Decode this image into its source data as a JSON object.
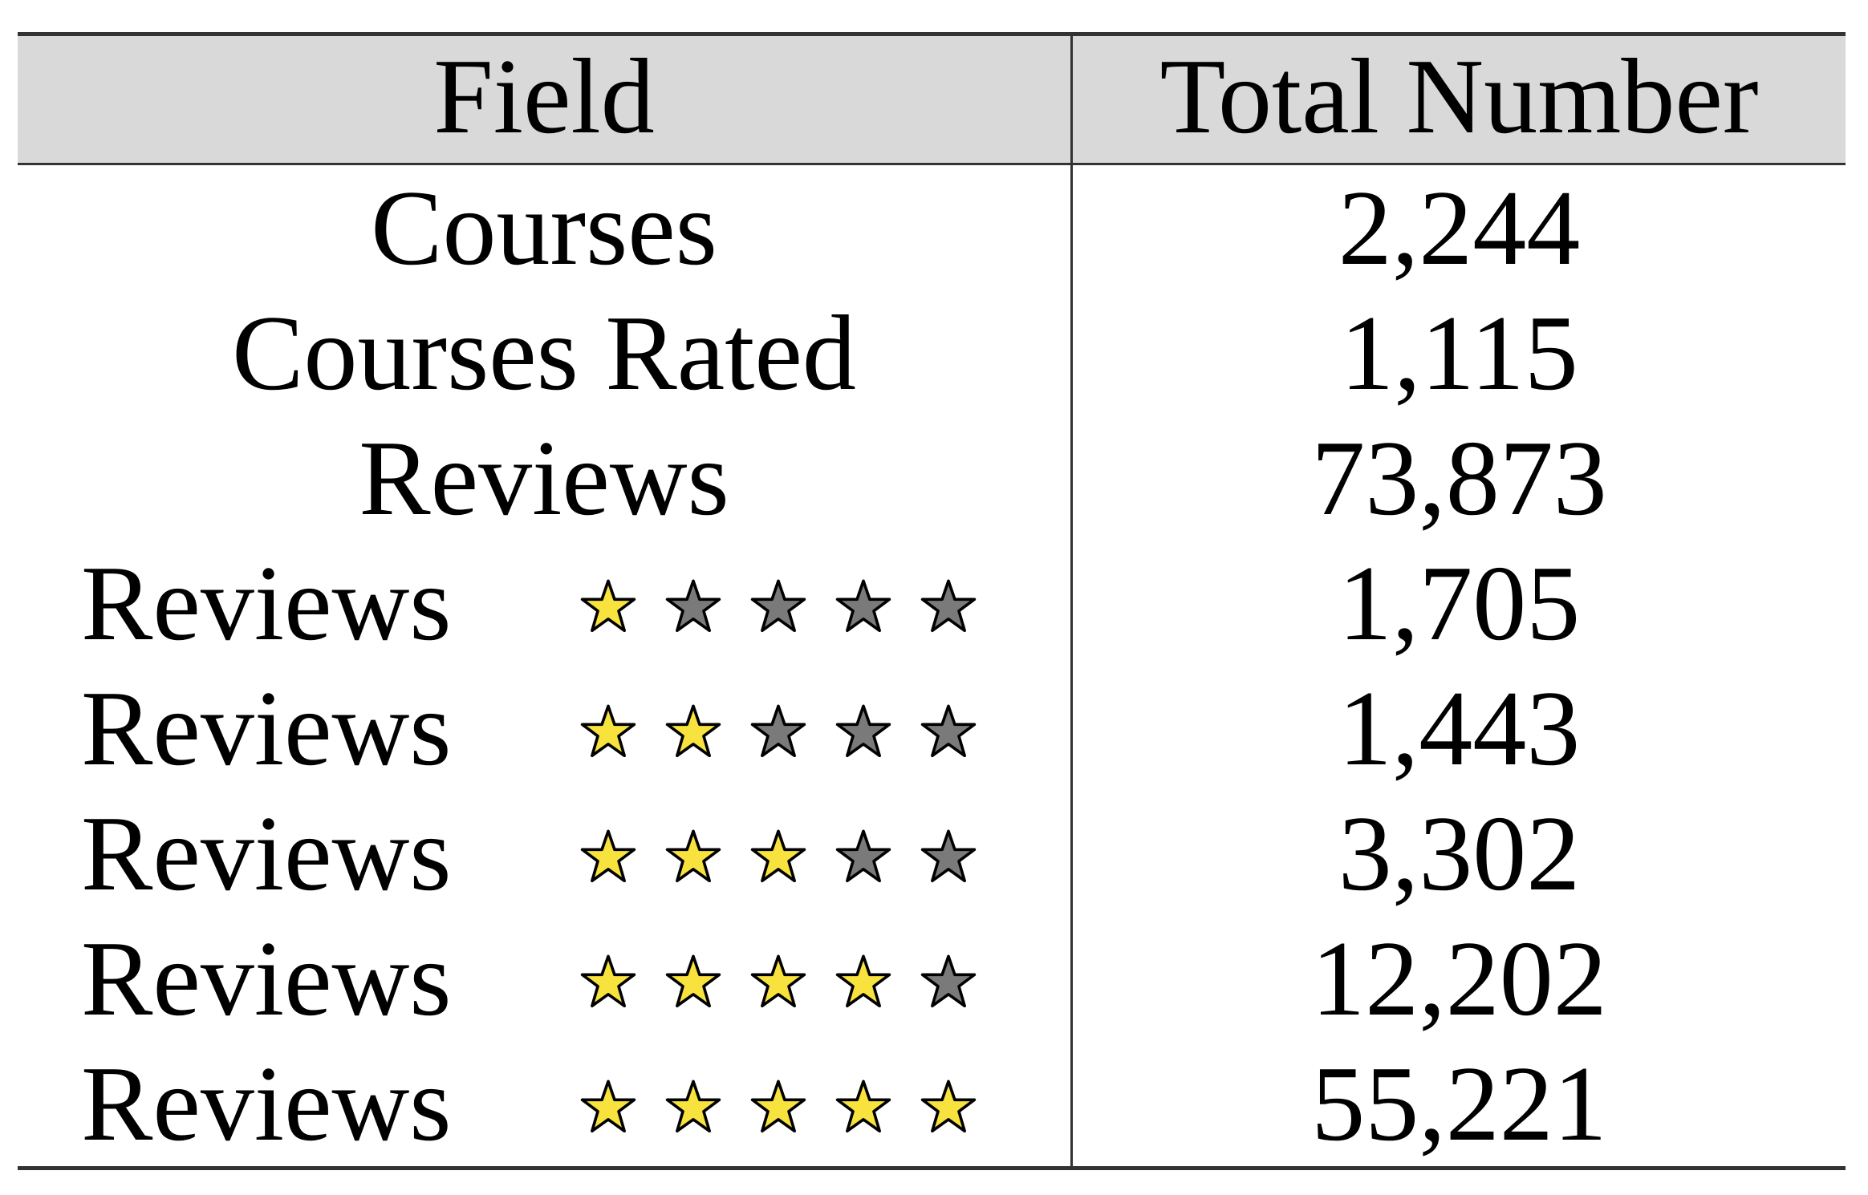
{
  "table": {
    "headers": {
      "field": "Field",
      "total": "Total Number"
    },
    "rows": [
      {
        "field": "Courses",
        "total": "2,244"
      },
      {
        "field": "Courses Rated",
        "total": "1,115"
      },
      {
        "field": "Reviews",
        "total": "73,873"
      },
      {
        "field": "Reviews",
        "stars_filled": 1,
        "stars_total": 5,
        "total": "1,705"
      },
      {
        "field": "Reviews",
        "stars_filled": 2,
        "stars_total": 5,
        "total": "1,443"
      },
      {
        "field": "Reviews",
        "stars_filled": 3,
        "stars_total": 5,
        "total": "3,302"
      },
      {
        "field": "Reviews",
        "stars_filled": 4,
        "stars_total": 5,
        "total": "12,202"
      },
      {
        "field": "Reviews",
        "stars_filled": 5,
        "stars_total": 5,
        "total": "55,221"
      }
    ]
  },
  "colors": {
    "header_bg": "#d9d9d9",
    "star_filled": "#f7e23e",
    "star_empty": "#7a7a7a",
    "star_outline": "#000000",
    "rule": "#333333"
  },
  "icons": {
    "star_filled": "star-filled-icon",
    "star_empty": "star-empty-icon"
  }
}
